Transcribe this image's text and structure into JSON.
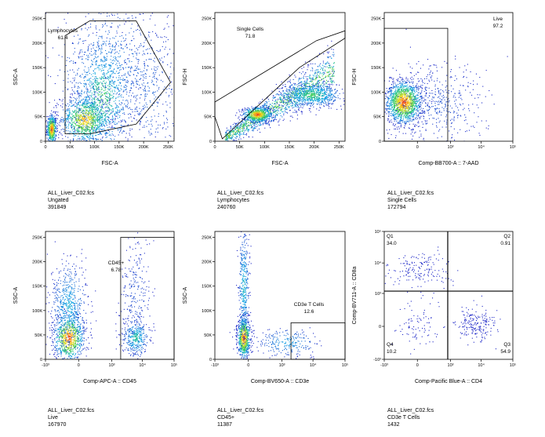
{
  "chart_data": [
    {
      "type": "scatter",
      "id": "p1",
      "xlabel": "FSC-A",
      "ylabel": "SSC-A",
      "xscale": "linear",
      "yscale": "linear",
      "xlim": [
        0,
        262144
      ],
      "ylim": [
        0,
        262144
      ],
      "xticks": [
        {
          "v": 0,
          "l": "0"
        },
        {
          "v": 50000,
          "l": "50K"
        },
        {
          "v": 100000,
          "l": "100K"
        },
        {
          "v": 150000,
          "l": "150K"
        },
        {
          "v": 200000,
          "l": "200K"
        },
        {
          "v": 250000,
          "l": "250K"
        }
      ],
      "yticks": [
        {
          "v": 0,
          "l": "0"
        },
        {
          "v": 50000,
          "l": "50K"
        },
        {
          "v": 100000,
          "l": "100K"
        },
        {
          "v": 150000,
          "l": "150K"
        },
        {
          "v": 200000,
          "l": "200K"
        },
        {
          "v": 250000,
          "l": "250K"
        }
      ],
      "clusters": [
        {
          "x": 12000,
          "y": 25000,
          "sx": 5000,
          "sy": 15000,
          "n": 500,
          "hot": 1.0
        },
        {
          "x": 80000,
          "y": 45000,
          "sx": 25000,
          "sy": 25000,
          "n": 1000,
          "hot": 0.85
        },
        {
          "x": 115000,
          "y": 90000,
          "sx": 30000,
          "sy": 60000,
          "n": 900,
          "hot": 0.55
        },
        {
          "x": 130000,
          "y": 150000,
          "sx": 60000,
          "sy": 70000,
          "n": 700,
          "hot": 0.25
        },
        {
          "x": 210000,
          "y": 100000,
          "sx": 35000,
          "sy": 80000,
          "n": 400,
          "hot": 0.15
        }
      ],
      "gate": {
        "name": "Lymphocytes",
        "value": "61.4",
        "shape": "polygon",
        "points": [
          [
            40000,
            15000
          ],
          [
            40000,
            215000
          ],
          [
            90000,
            245000
          ],
          [
            185000,
            245000
          ],
          [
            255000,
            120000
          ],
          [
            185000,
            35000
          ],
          [
            90000,
            15000
          ]
        ]
      },
      "caption": {
        "file": "ALL_Liver_C02.fcs",
        "population": "Ungated",
        "count": "391849"
      }
    },
    {
      "type": "scatter",
      "id": "p2",
      "xlabel": "FSC-A",
      "ylabel": "FSC-H",
      "xscale": "linear",
      "yscale": "linear",
      "xlim": [
        0,
        262144
      ],
      "ylim": [
        0,
        262144
      ],
      "xticks": [
        {
          "v": 0,
          "l": "0"
        },
        {
          "v": 50000,
          "l": "50K"
        },
        {
          "v": 100000,
          "l": "100K"
        },
        {
          "v": 150000,
          "l": "150K"
        },
        {
          "v": 200000,
          "l": "200K"
        },
        {
          "v": 250000,
          "l": "250K"
        }
      ],
      "yticks": [
        {
          "v": 0,
          "l": "0"
        },
        {
          "v": 50000,
          "l": "50K"
        },
        {
          "v": 100000,
          "l": "100K"
        },
        {
          "v": 150000,
          "l": "150K"
        },
        {
          "v": 200000,
          "l": "200K"
        },
        {
          "v": 250000,
          "l": "250K"
        }
      ],
      "clusters": [
        {
          "diag": true,
          "t0": 20000,
          "t1": 240000,
          "slope": 0.62,
          "off": -5000,
          "spread": 6000,
          "n": 1400,
          "hot": 0.7
        },
        {
          "x": 85000,
          "y": 55000,
          "sx": 15000,
          "sy": 8000,
          "n": 600,
          "hot": 1.0
        },
        {
          "x": 195000,
          "y": 95000,
          "sx": 30000,
          "sy": 12000,
          "n": 700,
          "hot": 0.55
        }
      ],
      "gate": {
        "name": "Single Cells",
        "value": "71.8",
        "shape": "polygon",
        "points": [
          [
            0,
            50000
          ],
          [
            0,
            80000
          ],
          [
            205000,
            205000
          ],
          [
            262144,
            225000
          ],
          [
            262144,
            210000
          ],
          [
            170000,
            150000
          ],
          [
            15000,
            5000
          ]
        ]
      },
      "caption": {
        "file": "ALL_Liver_C02.fcs",
        "population": "Lymphocytes",
        "count": "240760"
      }
    },
    {
      "type": "scatter",
      "id": "p3",
      "xlabel": "Comp-BB700-A :: 7-AAD",
      "ylabel": "FSC-H",
      "xscale": "biex",
      "yscale": "linear",
      "xlim": [
        -1000,
        100000
      ],
      "ylim": [
        0,
        262144
      ],
      "xticks": [
        {
          "v": 0,
          "l": "0"
        },
        {
          "v": 1000,
          "l": "10³"
        },
        {
          "v": 10000,
          "l": "10⁴"
        },
        {
          "v": 100000,
          "l": "10⁵"
        }
      ],
      "yticks": [
        {
          "v": 0,
          "l": "0"
        },
        {
          "v": 50000,
          "l": "50K"
        },
        {
          "v": 100000,
          "l": "100K"
        },
        {
          "v": 150000,
          "l": "150K"
        },
        {
          "v": 200000,
          "l": "200K"
        },
        {
          "v": 250000,
          "l": "250K"
        }
      ],
      "clusters": [
        {
          "bx": 0.15,
          "y": 80000,
          "bsx": 0.07,
          "sy": 22000,
          "n": 1400,
          "hot": 1.0
        },
        {
          "bx": 0.4,
          "y": 75000,
          "bsx": 0.2,
          "sy": 40000,
          "n": 500,
          "hot": 0.1
        }
      ],
      "gate": {
        "name": "Live",
        "value": "97.2",
        "shape": "rect",
        "x0": -1000,
        "x1": 800,
        "y0": 0,
        "y1": 230000
      },
      "caption": {
        "file": "ALL_Liver_C02.fcs",
        "population": "Single Cells",
        "count": "172794"
      }
    },
    {
      "type": "scatter",
      "id": "p4",
      "xlabel": "Comp-APC-A :: CD45",
      "ylabel": "SSC-A",
      "xscale": "biex",
      "yscale": "linear",
      "xlim": [
        -1000,
        100000
      ],
      "ylim": [
        0,
        262144
      ],
      "xticks": [
        {
          "v": -1000,
          "l": "-10³"
        },
        {
          "v": 0,
          "l": "0"
        },
        {
          "v": 1000,
          "l": "10³"
        },
        {
          "v": 10000,
          "l": "10⁴"
        },
        {
          "v": 100000,
          "l": "10⁵"
        }
      ],
      "yticks": [
        {
          "v": 0,
          "l": "0"
        },
        {
          "v": 50000,
          "l": "50K"
        },
        {
          "v": 100000,
          "l": "100K"
        },
        {
          "v": 150000,
          "l": "150K"
        },
        {
          "v": 200000,
          "l": "200K"
        },
        {
          "v": 250000,
          "l": "250K"
        }
      ],
      "clusters": [
        {
          "bx": 0.18,
          "y": 45000,
          "bsx": 0.06,
          "sy": 25000,
          "n": 800,
          "hot": 1.0
        },
        {
          "bx": 0.18,
          "y": 110000,
          "bsx": 0.07,
          "sy": 45000,
          "n": 600,
          "hot": 0.35
        },
        {
          "bx": 0.7,
          "y": 45000,
          "bsx": 0.05,
          "sy": 20000,
          "n": 350,
          "hot": 0.45
        },
        {
          "bx": 0.7,
          "y": 130000,
          "bsx": 0.06,
          "sy": 60000,
          "n": 250,
          "hot": 0.1
        }
      ],
      "gate": {
        "name": "CD45+",
        "value": "6.78",
        "shape": "rect",
        "x0": 2000,
        "x1": 100000,
        "y0": 0,
        "y1": 250000
      },
      "caption": {
        "file": "ALL_Liver_C02.fcs",
        "population": "Live",
        "count": "167970"
      }
    },
    {
      "type": "scatter",
      "id": "p5",
      "xlabel": "Comp-BV650-A :: CD3e",
      "ylabel": "SSC-A",
      "xscale": "biex",
      "yscale": "linear",
      "xlim": [
        -1000,
        100000
      ],
      "ylim": [
        0,
        262144
      ],
      "xticks": [
        {
          "v": -1000,
          "l": "-10³"
        },
        {
          "v": 0,
          "l": "0"
        },
        {
          "v": 1000,
          "l": "10³"
        },
        {
          "v": 10000,
          "l": "10⁴"
        },
        {
          "v": 100000,
          "l": "10⁵"
        }
      ],
      "yticks": [
        {
          "v": 0,
          "l": "0"
        },
        {
          "v": 50000,
          "l": "50K"
        },
        {
          "v": 100000,
          "l": "100K"
        },
        {
          "v": 150000,
          "l": "150K"
        },
        {
          "v": 200000,
          "l": "200K"
        },
        {
          "v": 250000,
          "l": "250K"
        }
      ],
      "clusters": [
        {
          "bx": 0.22,
          "y": 45000,
          "bsx": 0.025,
          "sy": 22000,
          "n": 700,
          "hot": 1.0
        },
        {
          "bx": 0.22,
          "y": 150000,
          "bsx": 0.02,
          "sy": 60000,
          "n": 400,
          "hot": 0.4
        },
        {
          "bx": 0.55,
          "y": 35000,
          "bsx": 0.12,
          "sy": 15000,
          "n": 250,
          "hot": 0.3
        }
      ],
      "gate": {
        "name": "CD3e T Cells",
        "value": "12.6",
        "shape": "rect",
        "x0": 2000,
        "x1": 100000,
        "y0": 0,
        "y1": 75000
      },
      "caption": {
        "file": "ALL_Liver_C02.fcs",
        "population": "CD45+",
        "count": "11387"
      }
    },
    {
      "type": "scatter",
      "id": "p6",
      "xlabel": "Comp-Pacific Blue-A :: CD4",
      "ylabel": "Comp-BV711-A :: CD8a",
      "xscale": "biex",
      "yscale": "biex",
      "xlim": [
        -1000,
        100000
      ],
      "ylim": [
        -1000,
        100000
      ],
      "xticks": [
        {
          "v": -1000,
          "l": "-10³"
        },
        {
          "v": 0,
          "l": "0"
        },
        {
          "v": 1000,
          "l": "10³"
        },
        {
          "v": 10000,
          "l": "10⁴"
        },
        {
          "v": 100000,
          "l": "10⁵"
        }
      ],
      "yticks": [
        {
          "v": -1000,
          "l": "-10³"
        },
        {
          "v": 0,
          "l": "0"
        },
        {
          "v": 1000,
          "l": "10³"
        },
        {
          "v": 10000,
          "l": "10⁴"
        },
        {
          "v": 100000,
          "l": "10⁵"
        }
      ],
      "clusters": [
        {
          "bx": 0.28,
          "by": 0.7,
          "bsx": 0.12,
          "bsy": 0.07,
          "n": 170,
          "hot": 0.0
        },
        {
          "bx": 0.7,
          "by": 0.27,
          "bsx": 0.08,
          "bsy": 0.07,
          "n": 200,
          "hot": 0.0
        },
        {
          "bx": 0.25,
          "by": 0.25,
          "bsx": 0.1,
          "bsy": 0.1,
          "n": 90,
          "hot": 0.0
        }
      ],
      "gate": {
        "shape": "quadrant",
        "x": 800,
        "y": 1200
      },
      "quadrants": [
        {
          "name": "Q1",
          "value": "34.0",
          "pos": "top-left"
        },
        {
          "name": "Q2",
          "value": "0.91",
          "pos": "top-right"
        },
        {
          "name": "Q3",
          "value": "54.9",
          "pos": "bottom-right"
        },
        {
          "name": "Q4",
          "value": "10.2",
          "pos": "bottom-left"
        }
      ],
      "caption": {
        "file": "ALL_Liver_C02.fcs",
        "population": "CD3e T Cells",
        "count": "1432"
      }
    }
  ]
}
